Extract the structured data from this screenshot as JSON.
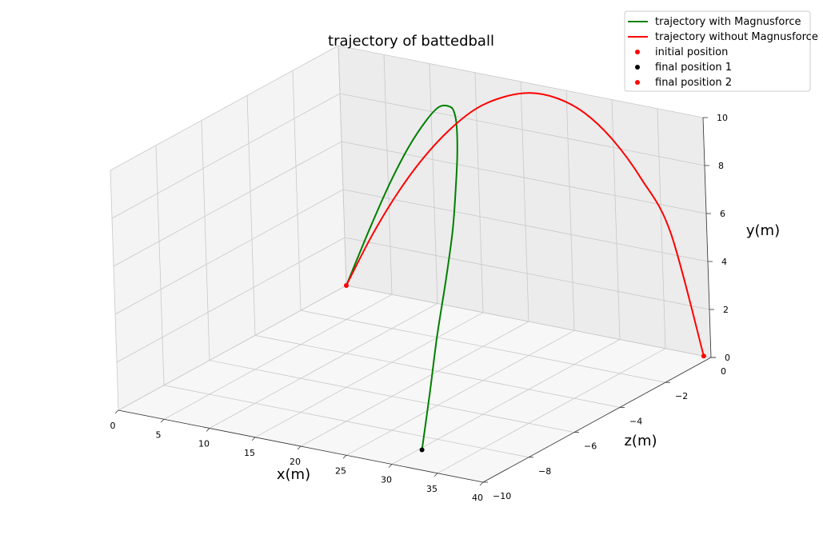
{
  "chart_data": {
    "type": "line",
    "title": "trajectory of battedball",
    "xlabel": "x(m)",
    "ylabel": "y(m)",
    "zlabel": "z(m)",
    "xlim": [
      0,
      40
    ],
    "ylim": [
      0,
      10
    ],
    "zlim": [
      -10,
      0
    ],
    "grid": true,
    "legend_position": "top-right",
    "x_ticks": [
      0,
      5,
      10,
      15,
      20,
      25,
      30,
      35,
      40
    ],
    "x_tick_labels": [
      "0",
      "5",
      "10",
      "15",
      "20",
      "25",
      "30",
      "35",
      "40"
    ],
    "y_ticks": [
      0,
      2,
      4,
      6,
      8,
      10
    ],
    "y_tick_labels": [
      "0",
      "2",
      "4",
      "6",
      "8",
      "10"
    ],
    "z_ticks": [
      0,
      -2,
      -4,
      -6,
      -8,
      -10
    ],
    "z_tick_labels": [
      "0",
      "−2",
      "−4",
      "−6",
      "−8",
      "−10"
    ],
    "series": [
      {
        "name": "trajectory with Magnusforce",
        "color": "#008000",
        "x": [
          0.0,
          3.0,
          6.0,
          9.0,
          12.0,
          15.0,
          18.0,
          20.0,
          22.0,
          24.0,
          25.5,
          26.8,
          27.9,
          28.8,
          29.6,
          30.3
        ],
        "y": [
          0.0,
          2.6,
          4.9,
          6.8,
          8.3,
          9.4,
          10.0,
          10.2,
          10.1,
          9.5,
          8.6,
          7.3,
          5.7,
          3.9,
          2.0,
          0.0
        ],
        "z": [
          0.0,
          -0.1,
          -0.3,
          -0.6,
          -1.0,
          -1.6,
          -2.3,
          -2.9,
          -3.6,
          -4.4,
          -5.1,
          -5.8,
          -6.6,
          -7.4,
          -8.1,
          -8.8
        ]
      },
      {
        "name": "trajectory without Magnusforce",
        "color": "#ff0000",
        "x": [
          0.0,
          3.0,
          6.0,
          9.0,
          12.0,
          15.0,
          18.0,
          21.0,
          24.0,
          27.0,
          30.0,
          33.0,
          36.0,
          39.2
        ],
        "y": [
          0.0,
          2.3,
          4.3,
          6.0,
          7.4,
          8.5,
          9.2,
          9.6,
          9.6,
          9.2,
          8.3,
          6.9,
          4.9,
          0.0
        ],
        "z": [
          0,
          0,
          0,
          0,
          0,
          0,
          0,
          0,
          0,
          0,
          0,
          0,
          0,
          0
        ]
      }
    ],
    "markers": [
      {
        "name": "initial position",
        "color": "#ff0000",
        "x": 0.0,
        "y": 0.0,
        "z": 0.0
      },
      {
        "name": "final position 1",
        "color": "#000000",
        "x": 30.3,
        "y": 0.0,
        "z": -8.8
      },
      {
        "name": "final position 2",
        "color": "#ff0000",
        "x": 39.2,
        "y": 0.0,
        "z": 0.0
      }
    ]
  }
}
